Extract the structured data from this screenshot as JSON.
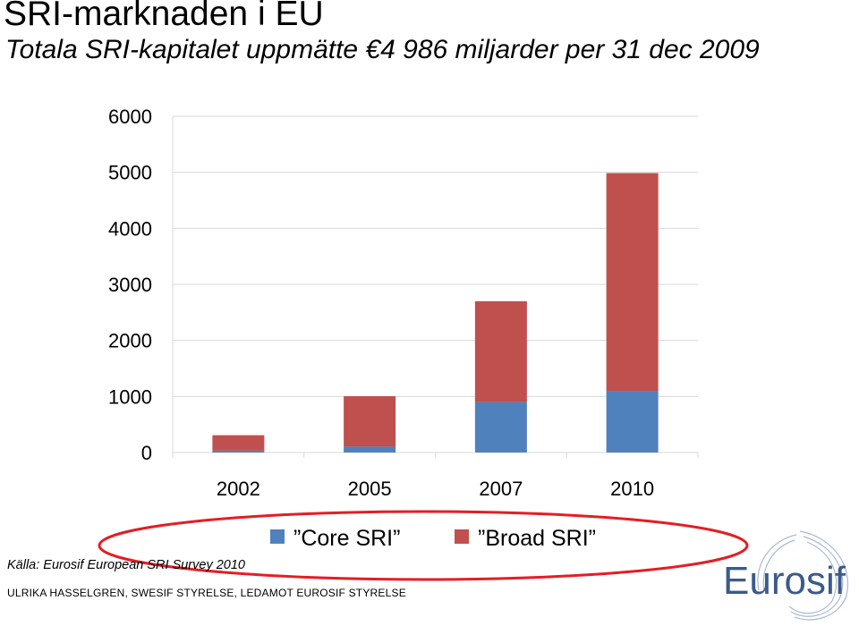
{
  "slide": {
    "title": "SRI-marknaden i EU",
    "subtitle": "Totala SRI-kapitalet uppmätte €4 986 miljarder per 31 dec 2009",
    "source": "Källa: Eurosif European SRI Survey 2010",
    "footer": "ULRIKA HASSELGREN, SWESIF STYRELSE, LEDAMOT EUROSIF STYRELSE",
    "logo_text": "Eurosif"
  },
  "colors": {
    "core": "#4f81bd",
    "broad": "#c0504d",
    "highlight_ellipse": "#e31e24",
    "grid": "#d9d9d9",
    "logo": "#3c5a8c"
  },
  "chart_data": {
    "type": "bar",
    "stacked": true,
    "categories": [
      "2002",
      "2005",
      "2007",
      "2010"
    ],
    "series": [
      {
        "name": "Core SRI",
        "values": [
          34,
          105,
          900,
          1100
        ]
      },
      {
        "name": "Broad SRI",
        "values": [
          275,
          900,
          1800,
          3886
        ]
      }
    ],
    "ylim": [
      0,
      6000
    ],
    "yticks": [
      "0",
      "1000",
      "2000",
      "3000",
      "4000",
      "5000",
      "6000"
    ],
    "grid": true,
    "legend_position": "bottom"
  }
}
